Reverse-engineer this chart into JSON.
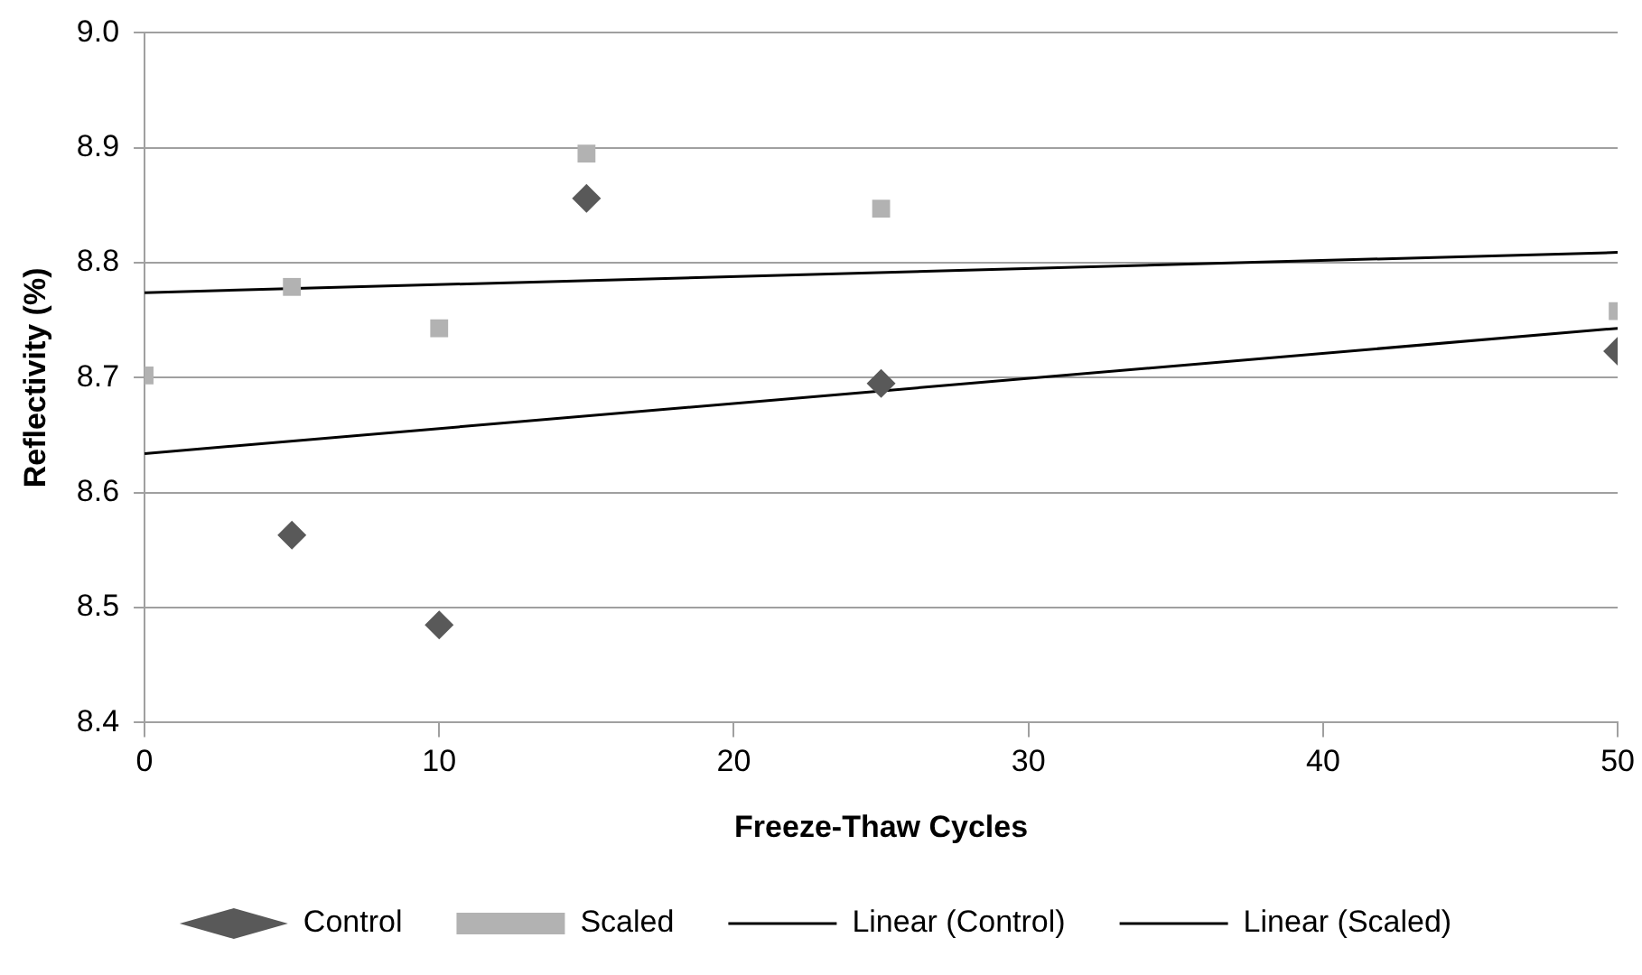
{
  "chart_data": {
    "type": "scatter",
    "xlabel": "Freeze-Thaw Cycles",
    "ylabel": "Reflectivity (%)",
    "xlim": [
      0,
      50
    ],
    "xticks": [
      0,
      10,
      20,
      30,
      40,
      50
    ],
    "ylim": [
      8.4,
      9.0
    ],
    "yticks": [
      {
        "value": 8.4,
        "label": "8.4"
      },
      {
        "value": 8.5,
        "label": "8.5"
      },
      {
        "value": 8.6,
        "label": "8.6"
      },
      {
        "value": 8.7,
        "label": "8.7"
      },
      {
        "value": 8.8,
        "label": "8.8"
      },
      {
        "value": 8.9,
        "label": "8.9"
      },
      {
        "value": 9.0,
        "label": "9.0"
      }
    ],
    "grid": "y",
    "legend": "bottom",
    "series": [
      {
        "name": "Control",
        "color": "#595959",
        "marker": "diamond",
        "x": [
          5,
          10,
          15,
          25,
          50
        ],
        "values": [
          8.563,
          8.485,
          8.856,
          8.695,
          8.723
        ]
      },
      {
        "name": "Scaled",
        "color": "#b2b2b2",
        "marker": "square",
        "x": [
          0,
          5,
          10,
          15,
          25,
          50
        ],
        "values": [
          8.702,
          8.779,
          8.743,
          8.895,
          8.847,
          8.758
        ]
      },
      {
        "name": "Linear (Control)",
        "type": "line",
        "color": "#000000",
        "marker": "none",
        "x": [
          0,
          50
        ],
        "values": [
          8.634,
          8.743
        ]
      },
      {
        "name": "Linear (Scaled)",
        "type": "line",
        "color": "#000000",
        "marker": "none",
        "x": [
          0,
          50
        ],
        "values": [
          8.774,
          8.809
        ]
      }
    ]
  }
}
